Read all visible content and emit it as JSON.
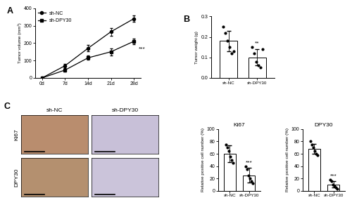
{
  "chart_data": [
    {
      "type": "line",
      "panel_label": "A",
      "y_label": "Tumor volume (mm³)",
      "categories": [
        "0d",
        "7d",
        "14d",
        "21d",
        "28d"
      ],
      "series": [
        {
          "name": "sh-NC",
          "color": "#000000",
          "marker": "circle",
          "values": [
            0,
            70,
            170,
            265,
            340
          ],
          "errors": [
            0,
            12,
            18,
            22,
            18
          ]
        },
        {
          "name": "sh-DPY30",
          "color": "#000000",
          "marker": "square",
          "values": [
            0,
            45,
            115,
            150,
            210
          ],
          "errors": [
            0,
            8,
            12,
            20,
            15
          ]
        }
      ],
      "ylim": [
        0,
        400
      ],
      "yticks": [
        0,
        100,
        200,
        300,
        400
      ],
      "legend": "upper left",
      "significance": "***"
    },
    {
      "type": "bar",
      "panel_label": "B",
      "y_label": "Tumor weight (g)",
      "categories": [
        "sh-NC",
        "sh-DPY30"
      ],
      "values": [
        0.18,
        0.1
      ],
      "errors": [
        0.05,
        0.04
      ],
      "points": [
        [
          0.25,
          0.22,
          0.18,
          0.15,
          0.12,
          0.13
        ],
        [
          0.15,
          0.12,
          0.08,
          0.06,
          0.05,
          0.14
        ]
      ],
      "color": "#ffffff",
      "ylim": [
        0.0,
        0.3
      ],
      "yticks": [
        0.0,
        0.1,
        0.2,
        0.3
      ],
      "significance": "**"
    },
    {
      "type": "bar",
      "title": "Ki67",
      "y_label": "Relative positive cell number (%)",
      "categories": [
        "sh-NC",
        "sh-DPY30"
      ],
      "values": [
        60,
        25
      ],
      "errors": [
        14,
        12
      ],
      "points": [
        [
          75,
          70,
          65,
          55,
          50,
          45
        ],
        [
          40,
          35,
          25,
          20,
          15,
          12
        ]
      ],
      "color": "#ffffff",
      "ylim": [
        0,
        100
      ],
      "yticks": [
        0,
        20,
        40,
        60,
        80,
        100
      ],
      "significance": "***"
    },
    {
      "type": "bar",
      "title": "DPY30",
      "y_label": "Relative positive cell number (%)",
      "categories": [
        "sh-NC",
        "sh-DPY30"
      ],
      "values": [
        68,
        10
      ],
      "errors": [
        8,
        5
      ],
      "points": [
        [
          80,
          75,
          70,
          65,
          60,
          58
        ],
        [
          18,
          15,
          10,
          8,
          5,
          3
        ]
      ],
      "color": "#ffffff",
      "ylim": [
        0,
        100
      ],
      "yticks": [
        0,
        20,
        40,
        60,
        80,
        100
      ],
      "significance": "***"
    }
  ],
  "images": {
    "panel_label": "C",
    "columns": [
      "sh-NC",
      "sh-DPY30"
    ],
    "rows": [
      "Ki67",
      "DPY30"
    ]
  }
}
